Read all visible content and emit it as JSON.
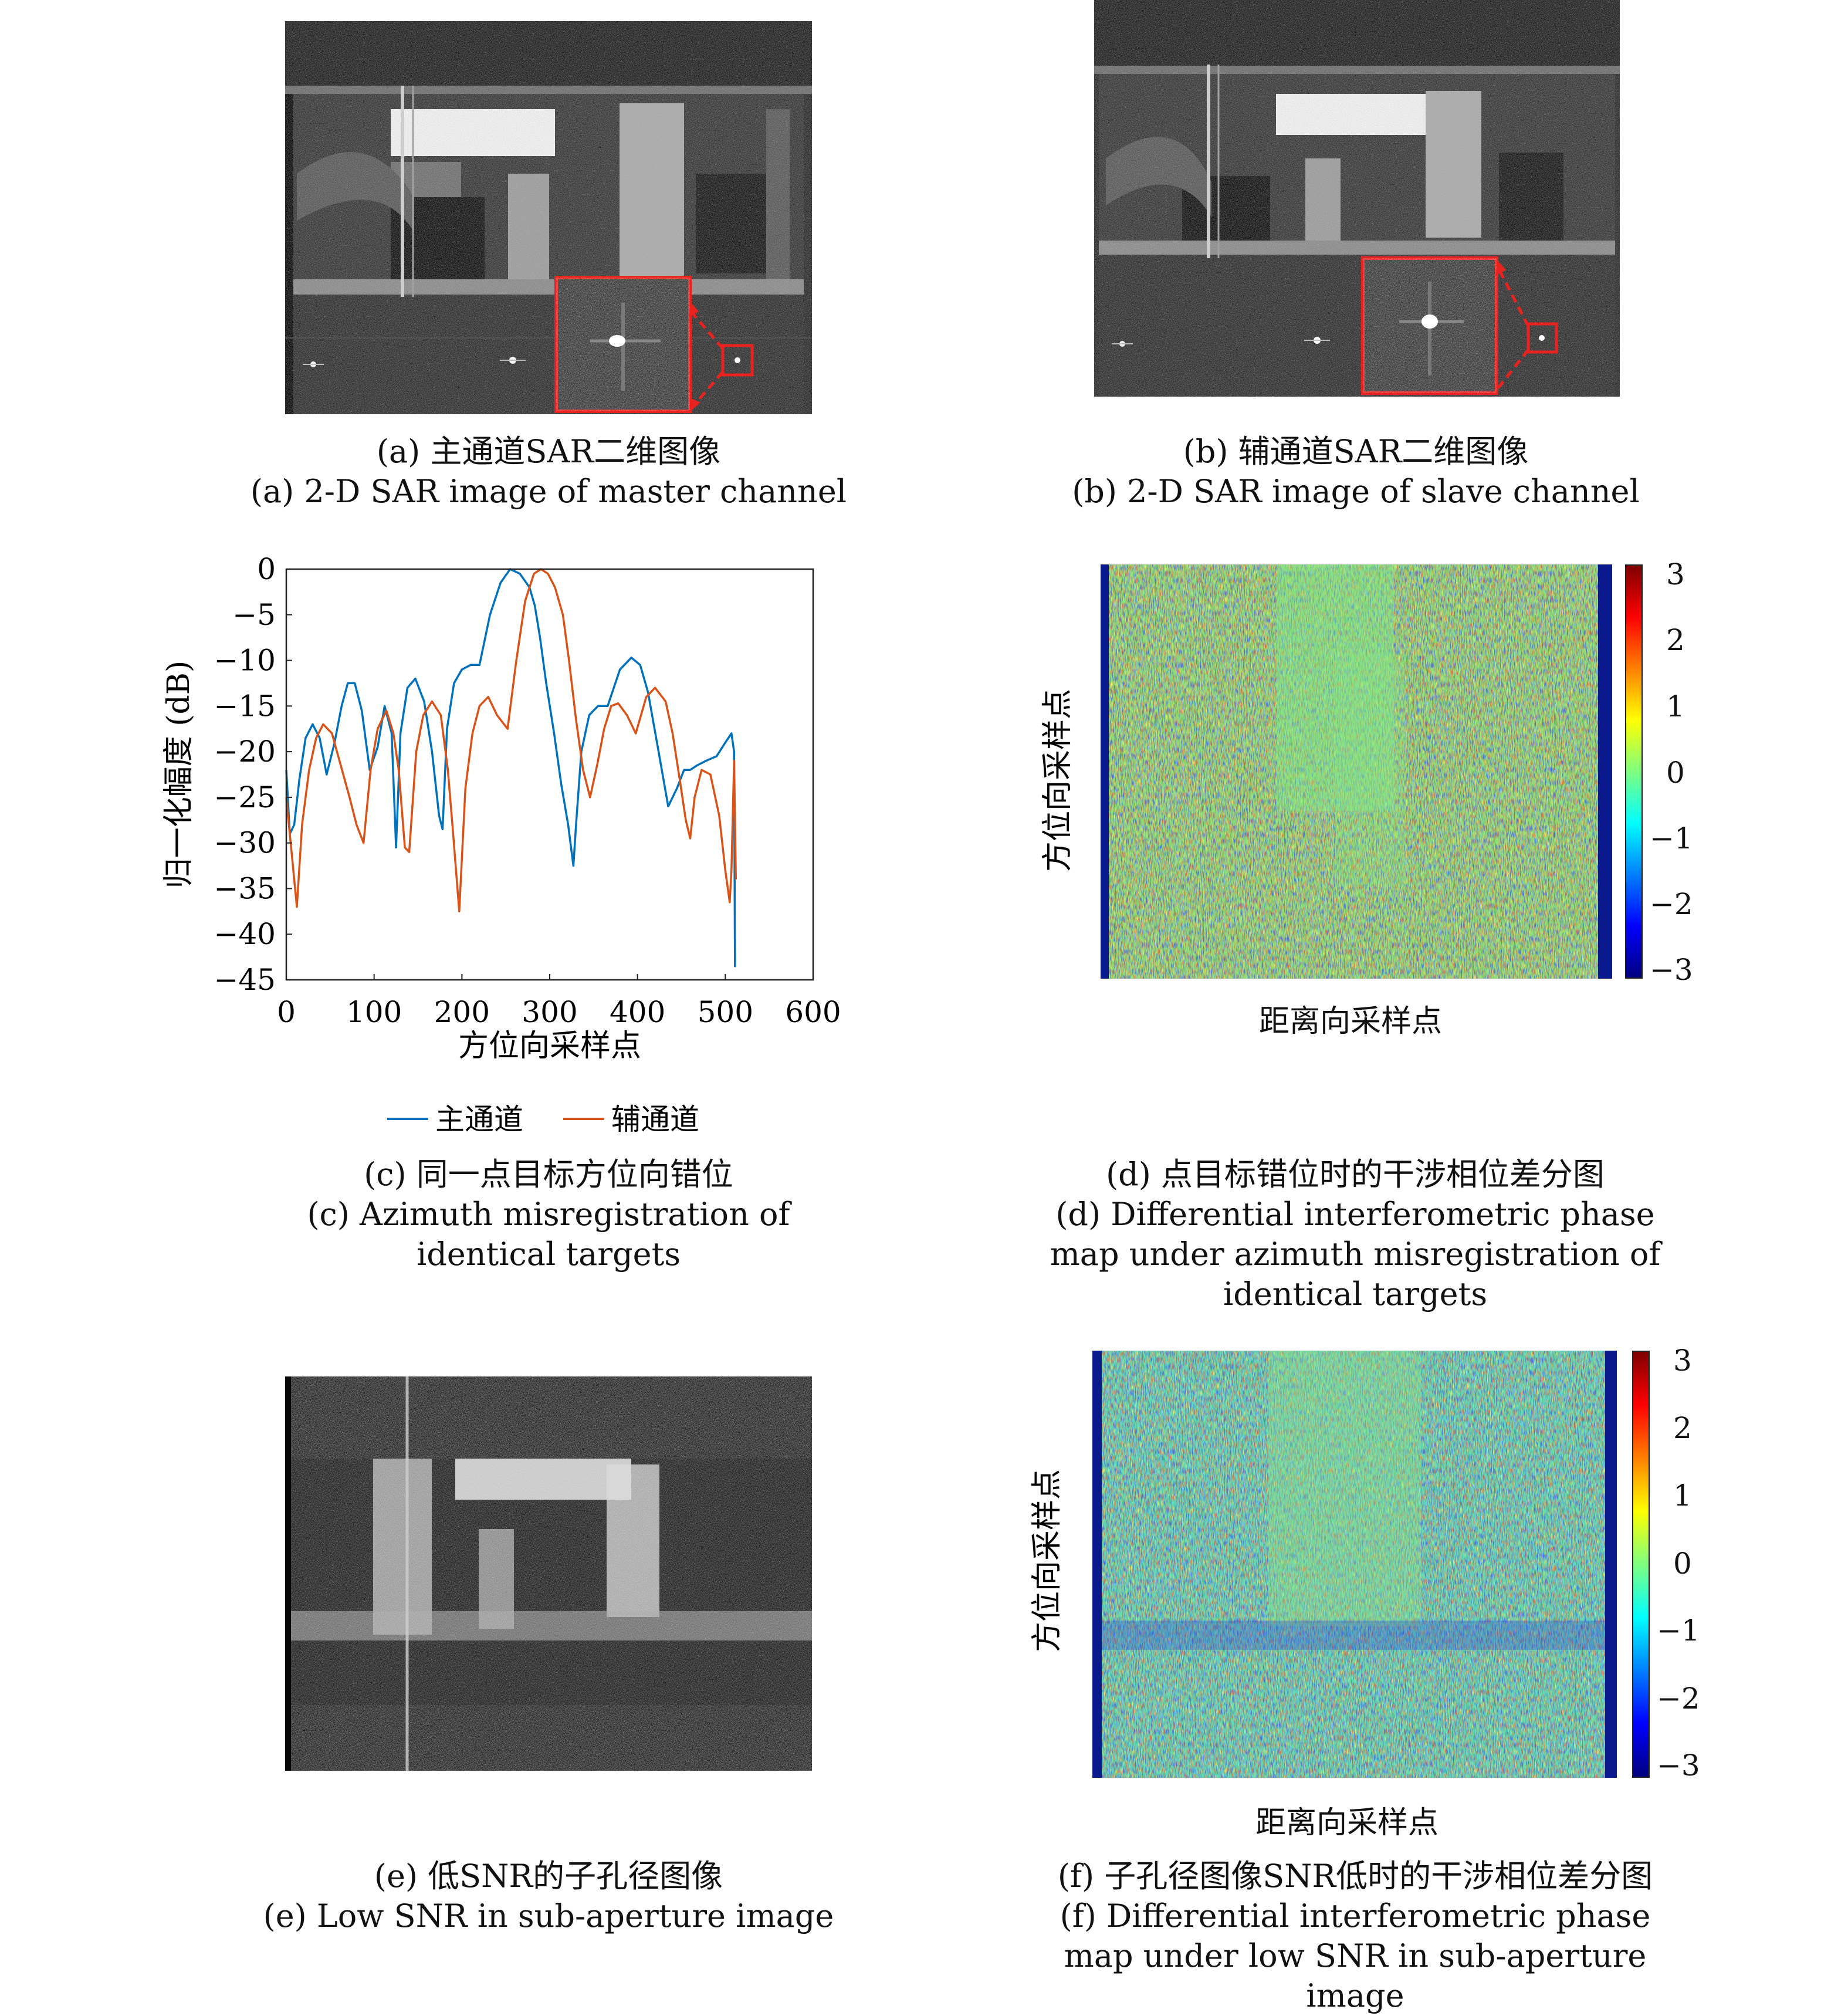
{
  "panels": {
    "a": {
      "caption_cn": "(a) 主通道SAR二维图像",
      "caption_en": "(a) 2-D SAR image of master channel"
    },
    "b": {
      "caption_cn": "(b) 辅通道SAR二维图像",
      "caption_en": "(b) 2-D SAR image of slave channel"
    },
    "c": {
      "caption_cn": "(c) 同一点目标方位向错位",
      "caption_en": "(c) Azimuth misregistration of identical targets"
    },
    "d": {
      "caption_cn": "(d) 点目标错位时的干涉相位差分图",
      "caption_en": "(d) Differential interferometric phase map under azimuth misregistration of identical targets",
      "ylabel": "方位向采样点",
      "xlabel": "距离向采样点",
      "colorbar_ticks": [
        "3",
        "2",
        "1",
        "0",
        "−1",
        "−2",
        "−3"
      ]
    },
    "e": {
      "caption_cn": "(e) 低SNR的子孔径图像",
      "caption_en": "(e) Low SNR in sub-aperture image"
    },
    "f": {
      "caption_cn": "(f) 子孔径图像SNR低时的干涉相位差分图",
      "caption_en": "(f) Differential interferometric phase map under low SNR in sub-aperture image",
      "ylabel": "方位向采样点",
      "xlabel": "距离向采样点",
      "colorbar_ticks": [
        "3",
        "2",
        "1",
        "0",
        "−1",
        "−2",
        "−3"
      ]
    }
  },
  "colors": {
    "master": "#0072BD",
    "slave": "#D95319",
    "inset_box": "#e8231f"
  },
  "chart_data": [
    {
      "type": "line",
      "xlabel": "方位向采样点",
      "ylabel": "归一化幅度 (dB)",
      "xlim": [
        0,
        600
      ],
      "ylim": [
        -45,
        0
      ],
      "xticks": [
        0,
        100,
        200,
        300,
        400,
        500,
        600
      ],
      "yticks": [
        0,
        -5,
        -10,
        -15,
        -20,
        -25,
        -30,
        -35,
        -40,
        -45
      ],
      "xtick_labels": [
        "0",
        "100",
        "200",
        "300",
        "400",
        "500",
        "600"
      ],
      "ytick_labels": [
        "0",
        "−5",
        "−10",
        "−15",
        "−20",
        "−25",
        "−30",
        "−35",
        "−40",
        "−45"
      ],
      "legend_position": "bottom",
      "series": [
        {
          "name": "主通道",
          "color": "#0072BD",
          "x": [
            0,
            4,
            9,
            15,
            22,
            30,
            38,
            46,
            55,
            63,
            70,
            78,
            86,
            95,
            104,
            112,
            120,
            125,
            130,
            138,
            147,
            157,
            166,
            174,
            178,
            183,
            191,
            200,
            210,
            220,
            232,
            244,
            255,
            266,
            277,
            283,
            289,
            296,
            305,
            313,
            321,
            327,
            330,
            336,
            345,
            355,
            366,
            380,
            393,
            403,
            412,
            424,
            435,
            445,
            453,
            460,
            468,
            478,
            490,
            500,
            507,
            510,
            511,
            512
          ],
          "y": [
            -22,
            -29,
            -28,
            -23,
            -18.5,
            -17,
            -18.5,
            -22.5,
            -19,
            -15,
            -12.5,
            -12.5,
            -15.5,
            -22,
            -19.5,
            -15,
            -18,
            -30.5,
            -18,
            -13,
            -12,
            -14.5,
            -20,
            -27,
            -28.5,
            -17.5,
            -12.5,
            -11,
            -10.5,
            -10.5,
            -5,
            -1.5,
            0,
            -0.5,
            -2,
            -4,
            -7.5,
            -12.5,
            -18,
            -23.5,
            -28,
            -32.5,
            -28,
            -20,
            -16,
            -15,
            -15,
            -11,
            -9.7,
            -10.5,
            -13.5,
            -20,
            -26,
            -24,
            -22,
            -22,
            -21.5,
            -21,
            -20.5,
            -19,
            -18,
            -20,
            -43.5,
            -43.5
          ]
        },
        {
          "name": "辅通道",
          "color": "#D95319",
          "x": [
            0,
            5,
            8,
            12,
            18,
            26,
            34,
            42,
            52,
            62,
            72,
            80,
            88,
            96,
            104,
            114,
            122,
            128,
            135,
            140,
            148,
            156,
            166,
            176,
            184,
            190,
            197,
            204,
            212,
            220,
            230,
            240,
            252,
            262,
            272,
            282,
            290,
            298,
            306,
            315,
            322,
            330,
            338,
            346,
            354,
            362,
            370,
            378,
            388,
            398,
            410,
            420,
            432,
            440,
            448,
            455,
            460,
            465,
            473,
            483,
            493,
            500,
            505,
            507,
            510,
            512
          ],
          "y": [
            -25,
            -30,
            -33,
            -37,
            -28,
            -22,
            -18.5,
            -17,
            -18,
            -21.5,
            -25,
            -28,
            -30,
            -22,
            -17.5,
            -15.5,
            -18,
            -22,
            -30.5,
            -31,
            -20,
            -16,
            -14.5,
            -16,
            -22,
            -29,
            -37.5,
            -24,
            -18,
            -15,
            -14,
            -16,
            -17.5,
            -10,
            -3.5,
            -0.5,
            0,
            -0.5,
            -2,
            -5,
            -10,
            -16.5,
            -22,
            -25,
            -21.5,
            -17.5,
            -15,
            -14.7,
            -16,
            -18,
            -14,
            -13,
            -14.5,
            -18,
            -23,
            -27.5,
            -29.5,
            -25,
            -22,
            -22.5,
            -27,
            -33,
            -36.5,
            -33,
            -21,
            -34
          ]
        }
      ]
    },
    {
      "type": "heatmap",
      "title": "",
      "xlabel": "距离向采样点",
      "ylabel": "方位向采样点",
      "color_range": [
        -3,
        3
      ],
      "colorbar_ticks": [
        3,
        2,
        1,
        0,
        -1,
        -2,
        -3
      ]
    },
    {
      "type": "heatmap",
      "title": "",
      "xlabel": "距离向采样点",
      "ylabel": "方位向采样点",
      "color_range": [
        -3,
        3
      ],
      "colorbar_ticks": [
        3,
        2,
        1,
        0,
        -1,
        -2,
        -3
      ]
    }
  ]
}
